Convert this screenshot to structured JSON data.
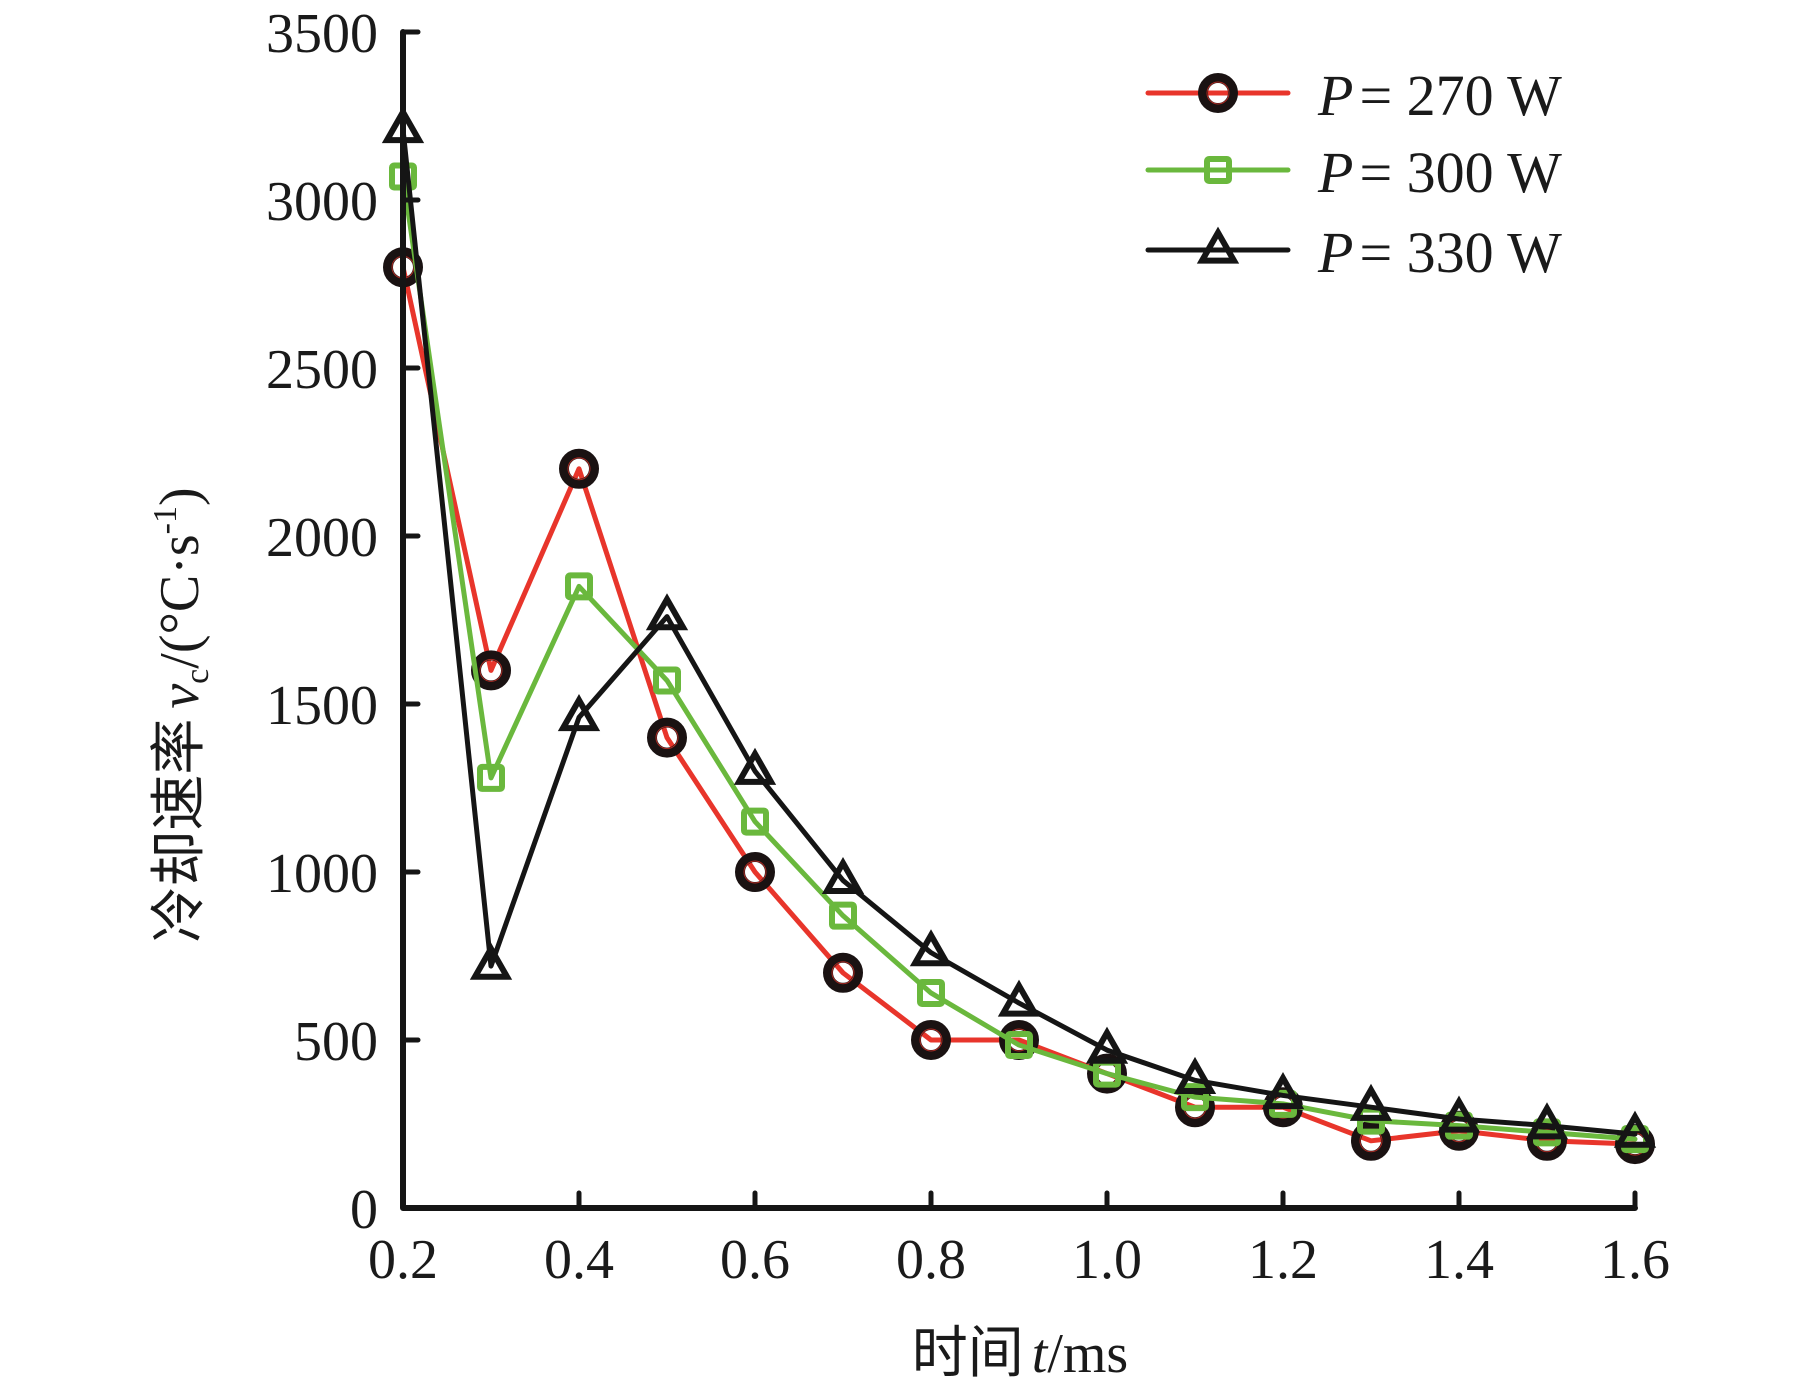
{
  "chart_data": {
    "type": "line",
    "title": "",
    "xlabel": {
      "prefix": "时间",
      "var": "t",
      "unit": "/ms"
    },
    "ylabel": {
      "prefix": "冷却速率",
      "var": "v",
      "sub": "c",
      "unit": "/(°C·s",
      "sup": "-1",
      "close": ")"
    },
    "xlim": [
      0.2,
      1.6
    ],
    "ylim": [
      0,
      3500
    ],
    "xticks": [
      0.2,
      0.4,
      0.6,
      0.8,
      1.0,
      1.2,
      1.4,
      1.6
    ],
    "xtick_labels": [
      "0.2",
      "0.4",
      "0.6",
      "0.8",
      "1.0",
      "1.2",
      "1.4",
      "1.6"
    ],
    "yticks": [
      0,
      500,
      1000,
      1500,
      2000,
      2500,
      3000,
      3500
    ],
    "ytick_labels": [
      "0",
      "500",
      "1000",
      "1500",
      "2000",
      "2500",
      "3000",
      "3500"
    ],
    "grid": false,
    "legend_position": "top-right",
    "x": [
      0.2,
      0.3,
      0.4,
      0.5,
      0.6,
      0.7,
      0.8,
      0.9,
      1.0,
      1.1,
      1.2,
      1.3,
      1.4,
      1.5,
      1.6
    ],
    "series": [
      {
        "name": "P = 270 W",
        "legend_var": "P",
        "legend_value": "= 270 W",
        "color": "#e8352b",
        "marker": "circle",
        "marker_color": "#1a1212",
        "values": [
          2800,
          1600,
          2200,
          1400,
          1000,
          700,
          500,
          500,
          400,
          300,
          300,
          200,
          230,
          200,
          190
        ]
      },
      {
        "name": "P = 300 W",
        "legend_var": "P",
        "legend_value": "= 300 W",
        "color": "#6ab83d",
        "marker": "square",
        "marker_color": "#6ab83d",
        "values": [
          3070,
          1280,
          1850,
          1570,
          1150,
          870,
          640,
          485,
          400,
          330,
          310,
          260,
          245,
          225,
          205
        ]
      },
      {
        "name": "P = 330 W",
        "legend_var": "P",
        "legend_value": "= 330 W",
        "color": "#151515",
        "marker": "triangle",
        "marker_color": "#151515",
        "values": [
          3210,
          720,
          1460,
          1760,
          1300,
          975,
          760,
          610,
          470,
          380,
          335,
          300,
          265,
          245,
          220
        ]
      }
    ]
  }
}
